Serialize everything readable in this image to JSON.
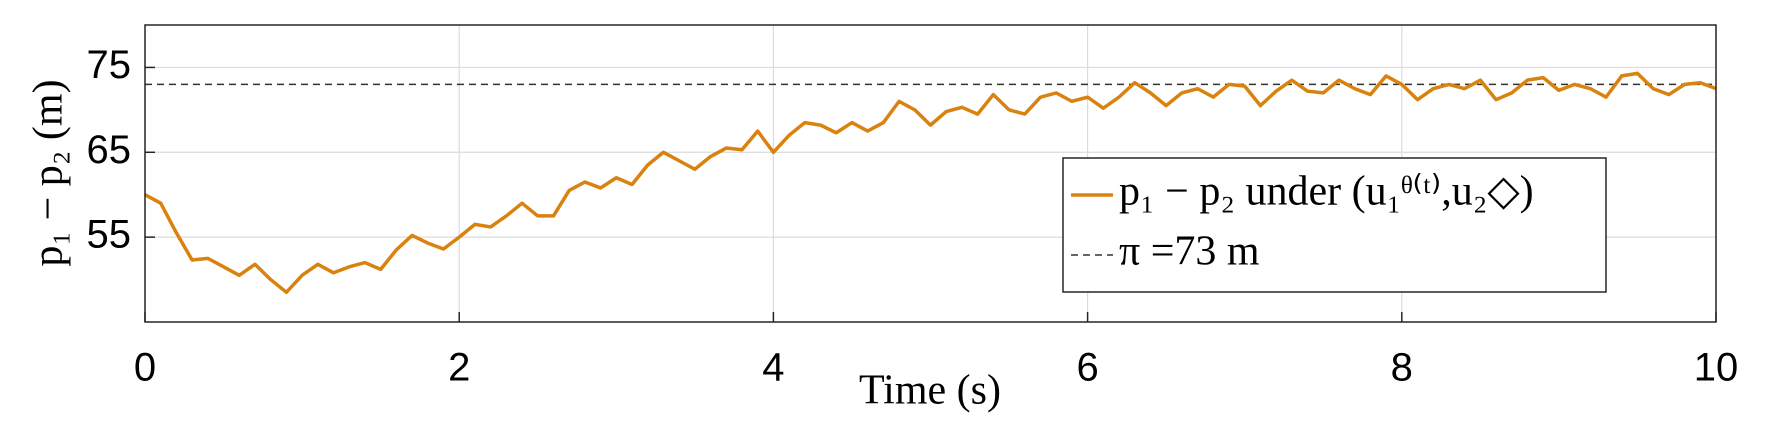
{
  "chart_data": {
    "type": "line",
    "xlabel": "Time (s)",
    "ylabel": "p₁ − p₂ (m)",
    "xlim": [
      0,
      10
    ],
    "xticks": [
      0,
      2,
      4,
      6,
      8,
      10
    ],
    "ylim": [
      45,
      80
    ],
    "yticks": [
      55,
      65,
      75
    ],
    "grid": true,
    "legend_position": "right",
    "x": [
      0,
      0.1,
      0.2,
      0.3,
      0.4,
      0.5,
      0.6,
      0.7,
      0.8,
      0.9,
      1,
      1.1,
      1.2,
      1.3,
      1.4,
      1.5,
      1.6,
      1.7,
      1.8,
      1.9,
      2,
      2.1,
      2.2,
      2.3,
      2.4,
      2.5,
      2.6,
      2.7,
      2.8,
      2.9,
      3,
      3.1,
      3.2,
      3.3,
      3.4,
      3.5,
      3.6,
      3.7,
      3.8,
      3.9,
      4,
      4.1,
      4.2,
      4.3,
      4.4,
      4.5,
      4.6,
      4.7,
      4.8,
      4.9,
      5,
      5.1,
      5.2,
      5.3,
      5.4,
      5.5,
      5.6,
      5.7,
      5.8,
      5.9,
      6,
      6.1,
      6.2,
      6.3,
      6.4,
      6.5,
      6.6,
      6.7,
      6.8,
      6.9,
      7,
      7.1,
      7.2,
      7.3,
      7.4,
      7.5,
      7.6,
      7.7,
      7.8,
      7.9,
      8,
      8.1,
      8.2,
      8.3,
      8.4,
      8.5,
      8.6,
      8.7,
      8.8,
      8.9,
      9,
      9.1,
      9.2,
      9.3,
      9.4,
      9.5,
      9.6,
      9.7,
      9.8,
      9.9,
      10
    ],
    "series": [
      {
        "name": "p₁ − p₂ under (u₁ᶿ⁽ᵗ⁾,u₂◇)",
        "color": "#d9820f",
        "values": [
          60,
          59,
          55.5,
          52.3,
          52.5,
          51.5,
          50.5,
          51.8,
          50,
          48.5,
          50.5,
          51.8,
          50.8,
          51.5,
          52,
          51.2,
          53.5,
          55.2,
          54.3,
          53.6,
          55,
          56.5,
          56.2,
          57.5,
          59,
          57.5,
          57.5,
          60.5,
          61.5,
          60.8,
          62,
          61.2,
          63.5,
          65,
          64,
          63,
          64.5,
          65.5,
          65.3,
          67.5,
          65,
          67,
          68.5,
          68.2,
          67.3,
          68.5,
          67.5,
          68.5,
          71,
          70,
          68.2,
          69.8,
          70.3,
          69.5,
          71.8,
          70,
          69.5,
          71.5,
          72,
          71,
          71.5,
          70.2,
          71.5,
          73.2,
          72,
          70.5,
          72,
          72.5,
          71.5,
          73,
          72.8,
          70.5,
          72.2,
          73.5,
          72.2,
          72,
          73.5,
          72.5,
          71.8,
          74,
          73,
          71.2,
          72.5,
          73,
          72.5,
          73.5,
          71.2,
          72,
          73.5,
          73.8,
          72.3,
          73,
          72.5,
          71.5,
          74,
          74.3,
          72.5,
          71.8,
          73,
          73.2,
          72.5
        ]
      }
    ],
    "reference_line": {
      "name": "π =73 m",
      "value": 73,
      "color": "#333333"
    }
  }
}
